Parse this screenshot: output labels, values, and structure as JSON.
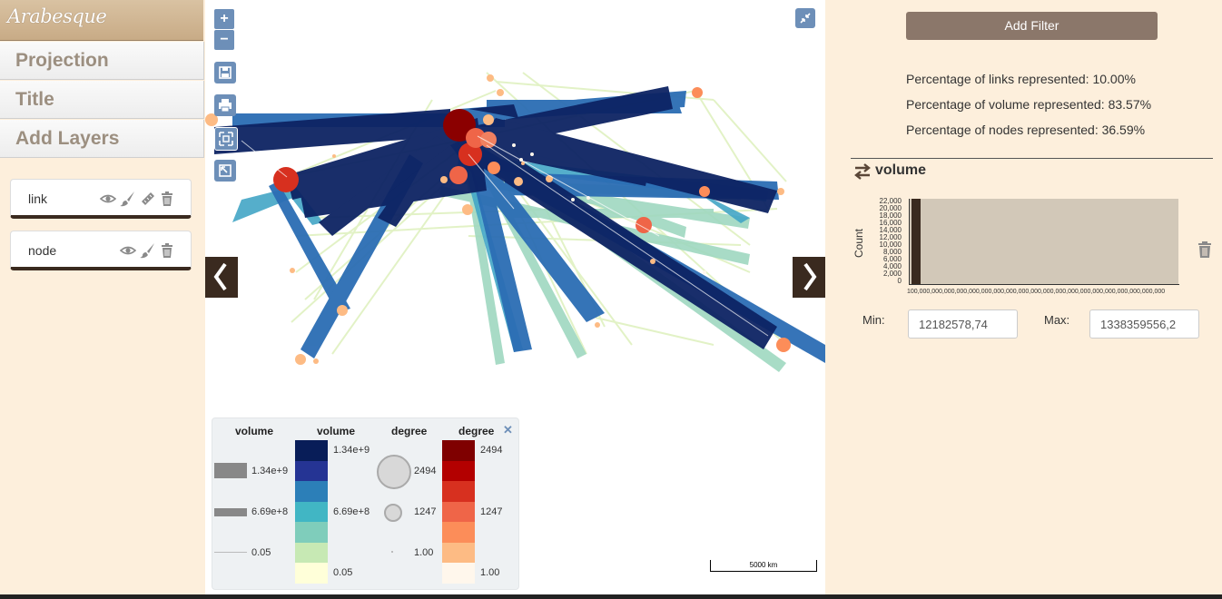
{
  "app": {
    "logo": "Arabesque"
  },
  "menu": [
    {
      "label": "Projection"
    },
    {
      "label": "Title"
    },
    {
      "label": "Add Layers"
    }
  ],
  "layers": [
    {
      "label": "link"
    },
    {
      "label": "node"
    }
  ],
  "map": {
    "zoom_in": "+",
    "zoom_out": "−",
    "scale_label": "5000 km",
    "legend": {
      "headers": [
        "volume",
        "volume",
        "degree",
        "degree"
      ],
      "width_labels": [
        "1.34e+9",
        "6.69e+8",
        "0.05"
      ],
      "volume_color_labels": [
        "1.34e+9",
        "6.69e+8",
        "0.05"
      ],
      "volume_colors": [
        "#081d58",
        "#253494",
        "#2c7fb8",
        "#41b6c4",
        "#7fcdbb",
        "#c7e9b4",
        "#ffffd9"
      ],
      "size_labels": [
        "2494",
        "1247",
        "1.00"
      ],
      "degree_color_labels": [
        "2494",
        "1247",
        "1.00"
      ],
      "degree_colors": [
        "#7f0000",
        "#b30000",
        "#d7301f",
        "#ef6548",
        "#fc8d59",
        "#fdbb84",
        "#fff7ec"
      ],
      "close": "✕"
    }
  },
  "filter_panel": {
    "add_filter": "Add Filter",
    "stats": [
      "Percentage of links represented: 10.00%",
      "Percentage of volume represented: 83.57%",
      "Percentage of nodes represented: 36.59%"
    ],
    "filter_title": "volume",
    "histogram": {
      "ylabel": "Count",
      "yticks": [
        "22,000",
        "20,000",
        "18,000",
        "16,000",
        "14,000",
        "12,000",
        "10,000",
        "8,000",
        "6,000",
        "4,000",
        "2,000",
        "0"
      ],
      "xtick_text": "100,000,000,000,000,000,000,000,000,000,000,000,000,000,000,000,000,000,000,000,000"
    },
    "min_label": "Min:",
    "max_label": "Max:",
    "min_value": "12182578,74",
    "max_value": "1338359556,2"
  },
  "colors": {
    "accent": "#8b776a",
    "dark": "#3a2a1f",
    "map_button": "#6d8fb8",
    "panel_bg": "#fdefdc"
  }
}
